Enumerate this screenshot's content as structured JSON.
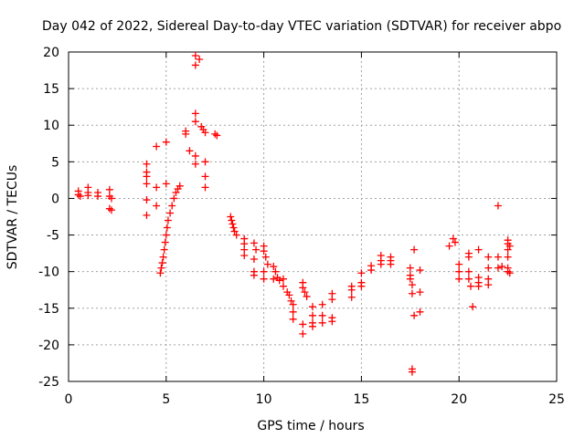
{
  "chart_data": {
    "type": "scatter",
    "title": "Day 042 of 2022, Sidereal Day-to-day VTEC variation (SDTVAR) for receiver abpo",
    "xlabel": "GPS time / hours",
    "ylabel": "SDTVAR / TECUs",
    "xlim": [
      0,
      25
    ],
    "ylim": [
      -25,
      20
    ],
    "xticks": [
      0,
      5,
      10,
      15,
      20,
      25
    ],
    "yticks": [
      -25,
      -20,
      -15,
      -10,
      -5,
      0,
      5,
      10,
      15,
      20
    ],
    "grid": true,
    "marker": "+",
    "series_color": "#ff0000",
    "points": [
      [
        0.5,
        1.0
      ],
      [
        0.5,
        0.5
      ],
      [
        0.6,
        0.3
      ],
      [
        1.0,
        1.5
      ],
      [
        1.0,
        0.8
      ],
      [
        1.0,
        0.4
      ],
      [
        1.5,
        0.8
      ],
      [
        1.5,
        0.3
      ],
      [
        2.1,
        1.2
      ],
      [
        2.1,
        0.3
      ],
      [
        2.1,
        -1.4
      ],
      [
        2.2,
        -1.6
      ],
      [
        2.2,
        0.0
      ],
      [
        4.0,
        4.7
      ],
      [
        4.0,
        3.6
      ],
      [
        4.0,
        3.0
      ],
      [
        4.0,
        2.0
      ],
      [
        4.0,
        -0.2
      ],
      [
        4.0,
        -2.3
      ],
      [
        4.5,
        7.1
      ],
      [
        4.5,
        1.5
      ],
      [
        4.5,
        -1.0
      ],
      [
        5.0,
        7.7
      ],
      [
        5.0,
        2.0
      ],
      [
        4.7,
        -10.2
      ],
      [
        4.75,
        -9.5
      ],
      [
        4.8,
        -8.8
      ],
      [
        4.85,
        -8.0
      ],
      [
        4.9,
        -7.0
      ],
      [
        4.95,
        -6.0
      ],
      [
        5.0,
        -5.0
      ],
      [
        5.05,
        -4.0
      ],
      [
        5.1,
        -3.0
      ],
      [
        5.2,
        -2.0
      ],
      [
        5.3,
        -1.0
      ],
      [
        5.4,
        0.0
      ],
      [
        5.5,
        0.8
      ],
      [
        5.6,
        1.3
      ],
      [
        5.7,
        1.7
      ],
      [
        6.0,
        9.2
      ],
      [
        6.0,
        8.8
      ],
      [
        6.2,
        6.5
      ],
      [
        6.5,
        19.5
      ],
      [
        6.5,
        18.2
      ],
      [
        6.7,
        19.0
      ],
      [
        6.5,
        11.6
      ],
      [
        6.5,
        10.5
      ],
      [
        6.5,
        5.8
      ],
      [
        6.5,
        4.7
      ],
      [
        6.8,
        9.8
      ],
      [
        6.9,
        9.4
      ],
      [
        7.0,
        9.0
      ],
      [
        7.0,
        5.0
      ],
      [
        7.0,
        3.0
      ],
      [
        7.0,
        1.5
      ],
      [
        7.5,
        8.8
      ],
      [
        7.6,
        8.6
      ],
      [
        8.3,
        -2.5
      ],
      [
        8.35,
        -3.0
      ],
      [
        8.4,
        -3.5
      ],
      [
        8.45,
        -4.0
      ],
      [
        8.5,
        -4.5
      ],
      [
        8.6,
        -5.0
      ],
      [
        9.0,
        -5.5
      ],
      [
        9.0,
        -6.2
      ],
      [
        9.0,
        -7.0
      ],
      [
        9.0,
        -7.8
      ],
      [
        9.5,
        -6.1
      ],
      [
        9.6,
        -7.0
      ],
      [
        9.5,
        -8.3
      ],
      [
        9.5,
        -10.0
      ],
      [
        9.5,
        -10.5
      ],
      [
        10.0,
        -6.5
      ],
      [
        10.0,
        -7.2
      ],
      [
        10.1,
        -8.0
      ],
      [
        10.2,
        -9.0
      ],
      [
        10.0,
        -10.0
      ],
      [
        10.0,
        -11.0
      ],
      [
        10.5,
        -9.3
      ],
      [
        10.6,
        -10.0
      ],
      [
        10.7,
        -10.8
      ],
      [
        10.8,
        -11.2
      ],
      [
        10.5,
        -11.0
      ],
      [
        11.0,
        -11.0
      ],
      [
        11.0,
        -12.0
      ],
      [
        11.2,
        -12.8
      ],
      [
        11.3,
        -13.2
      ],
      [
        11.4,
        -14.0
      ],
      [
        11.5,
        -14.5
      ],
      [
        11.5,
        -15.5
      ],
      [
        11.5,
        -16.5
      ],
      [
        12.0,
        -11.5
      ],
      [
        12.0,
        -12.2
      ],
      [
        12.1,
        -12.8
      ],
      [
        12.2,
        -13.4
      ],
      [
        12.0,
        -17.2
      ],
      [
        12.0,
        -18.5
      ],
      [
        12.5,
        -14.8
      ],
      [
        12.5,
        -16.0
      ],
      [
        12.5,
        -17.0
      ],
      [
        12.5,
        -17.5
      ],
      [
        13.0,
        -14.5
      ],
      [
        13.0,
        -16.0
      ],
      [
        13.0,
        -17.0
      ],
      [
        13.5,
        -13.0
      ],
      [
        13.5,
        -13.8
      ],
      [
        13.5,
        -16.3
      ],
      [
        13.5,
        -16.8
      ],
      [
        14.5,
        -12.0
      ],
      [
        14.5,
        -12.5
      ],
      [
        14.5,
        -13.5
      ],
      [
        15.0,
        -10.2
      ],
      [
        15.0,
        -11.5
      ],
      [
        15.0,
        -12.0
      ],
      [
        15.5,
        -9.2
      ],
      [
        15.5,
        -9.8
      ],
      [
        16.0,
        -7.8
      ],
      [
        16.0,
        -8.5
      ],
      [
        16.0,
        -9.0
      ],
      [
        16.5,
        -8.0
      ],
      [
        16.5,
        -8.5
      ],
      [
        16.5,
        -9.0
      ],
      [
        17.5,
        -9.5
      ],
      [
        17.5,
        -10.5
      ],
      [
        17.5,
        -11.0
      ],
      [
        17.6,
        -11.8
      ],
      [
        17.6,
        -13.0
      ],
      [
        17.7,
        -7.0
      ],
      [
        17.7,
        -16.0
      ],
      [
        17.6,
        -23.3
      ],
      [
        17.6,
        -23.7
      ],
      [
        18.0,
        -9.8
      ],
      [
        18.0,
        -12.8
      ],
      [
        18.0,
        -15.5
      ],
      [
        19.5,
        -6.5
      ],
      [
        19.7,
        -5.5
      ],
      [
        19.8,
        -6.0
      ],
      [
        20.0,
        -9.0
      ],
      [
        20.0,
        -10.0
      ],
      [
        20.0,
        -11.0
      ],
      [
        20.5,
        -7.5
      ],
      [
        20.5,
        -8.0
      ],
      [
        20.5,
        -10.0
      ],
      [
        20.5,
        -11.0
      ],
      [
        20.6,
        -12.0
      ],
      [
        20.7,
        -14.8
      ],
      [
        21.0,
        -7.0
      ],
      [
        21.0,
        -10.8
      ],
      [
        21.0,
        -11.5
      ],
      [
        21.0,
        -12.0
      ],
      [
        21.5,
        -8.0
      ],
      [
        21.5,
        -9.5
      ],
      [
        21.5,
        -11.0
      ],
      [
        21.5,
        -11.8
      ],
      [
        22.0,
        -1.0
      ],
      [
        22.0,
        -8.0
      ],
      [
        22.0,
        -9.5
      ],
      [
        22.2,
        -9.3
      ],
      [
        22.5,
        -5.7
      ],
      [
        22.5,
        -6.2
      ],
      [
        22.5,
        -7.0
      ],
      [
        22.5,
        -8.0
      ],
      [
        22.5,
        -9.5
      ],
      [
        22.5,
        -10.0
      ],
      [
        22.6,
        -10.2
      ],
      [
        22.6,
        -6.5
      ]
    ]
  }
}
